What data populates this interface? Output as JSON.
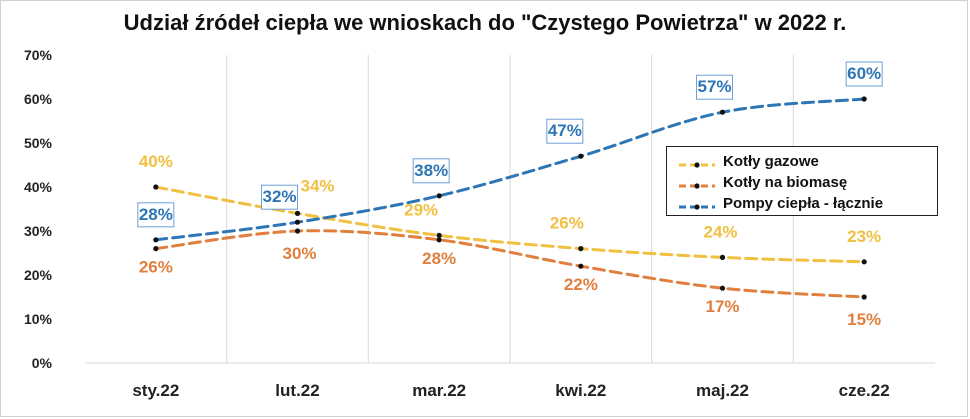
{
  "chart_data": {
    "type": "line",
    "title": "Udział źródeł ciepła we wnioskach do \"Czystego Powietrza\" w 2022 r.",
    "categories": [
      "sty.22",
      "lut.22",
      "mar.22",
      "kwi.22",
      "maj.22",
      "cze.22"
    ],
    "ylim": [
      0,
      70
    ],
    "y_ticks": [
      "0%",
      "10%",
      "20%",
      "30%",
      "40%",
      "50%",
      "60%",
      "70%"
    ],
    "grid": "vertical lines only",
    "legend_position": "right",
    "series": [
      {
        "name": "Kotły gazowe",
        "color": "#f0c040",
        "values": [
          40,
          34,
          29,
          26,
          24,
          23
        ],
        "labels": [
          "40%",
          "34%",
          "29%",
          "26%",
          "24%",
          "23%"
        ]
      },
      {
        "name": "Kotły na biomasę",
        "color": "#e07f3e",
        "values": [
          26,
          30,
          28,
          22,
          17,
          15
        ],
        "labels": [
          "26%",
          "30%",
          "28%",
          "22%",
          "17%",
          "15%"
        ]
      },
      {
        "name": "Pompy ciepła - łącznie",
        "color": "#2e75b6",
        "values": [
          28,
          32,
          38,
          47,
          57,
          60
        ],
        "labels": [
          "28%",
          "32%",
          "38%",
          "47%",
          "57%",
          "60%"
        ]
      }
    ]
  }
}
